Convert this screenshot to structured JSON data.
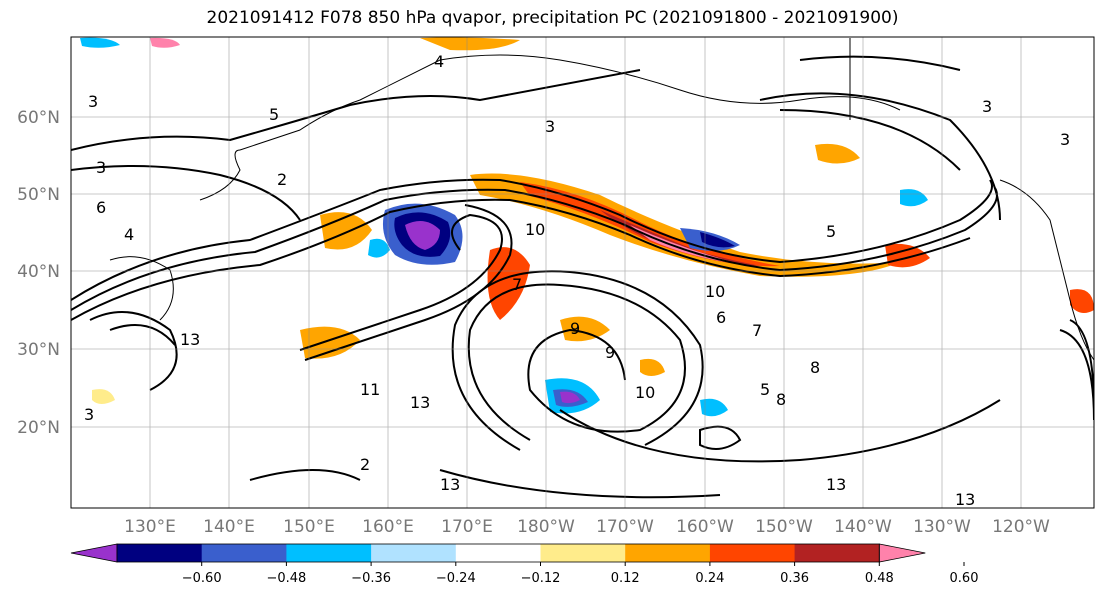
{
  "title": "2021091412 F078 850 hPa qvapor, precipitation PC (2021091800 - 2021091900)",
  "map": {
    "lon_labels": [
      "130°E",
      "140°E",
      "150°E",
      "160°E",
      "170°E",
      "180°W",
      "170°W",
      "160°W",
      "150°W",
      "140°W",
      "130°W",
      "120°W"
    ],
    "lat_labels": [
      "60°N",
      "50°N",
      "40°N",
      "30°N",
      "20°N"
    ],
    "contour_labels": [
      "4",
      "3",
      "5",
      "3",
      "3",
      "2",
      "3",
      "5",
      "6",
      "4",
      "10",
      "10",
      "7",
      "6",
      "7",
      "8",
      "8",
      "9",
      "9",
      "10",
      "11",
      "13",
      "13",
      "13",
      "3",
      "2",
      "5",
      "13",
      "13",
      "3"
    ]
  },
  "colorbar": {
    "ticks": [
      "−0.60",
      "−0.48",
      "−0.36",
      "−0.24",
      "−0.12",
      "0.12",
      "0.24",
      "0.36",
      "0.48",
      "0.60"
    ],
    "colors": [
      "#9932cc",
      "#000080",
      "#3a5fcd",
      "#00bfff",
      "#b0e2ff",
      "#ffffff",
      "#ffec8b",
      "#ffa500",
      "#ff4500",
      "#b22222",
      "#ff82ab"
    ]
  }
}
